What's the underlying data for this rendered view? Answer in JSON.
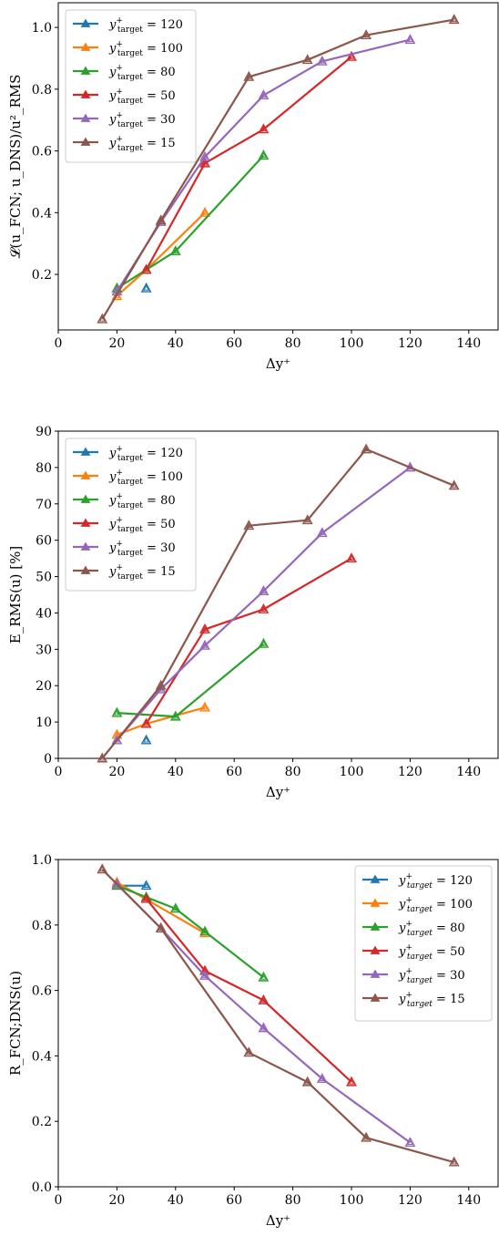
{
  "colors": {
    "120": "#1f77b4",
    "100": "#ff7f0e",
    "80": "#2ca02c",
    "50": "#d62728",
    "30": "#9467bd",
    "15": "#8c564b"
  },
  "chart_data": [
    {
      "type": "line",
      "xlabel": "Δy⁺",
      "ylabel": "𝓛(u_FCN; u_DNS)/u²_RMS",
      "xlim": [
        0,
        150
      ],
      "ylim": [
        0.02,
        1.08
      ],
      "xticks": [
        0,
        20,
        40,
        60,
        80,
        100,
        120,
        140
      ],
      "yticks": [
        0.2,
        0.4,
        0.6,
        0.8,
        1.0
      ],
      "yticklabels": [
        "0.2",
        "0.4",
        "0.6",
        "0.8",
        "1.0"
      ],
      "legend_loc": "upper-left",
      "grid": false,
      "series": [
        {
          "name": "y⁺target = 120",
          "key": "120",
          "x": [
            30
          ],
          "y": [
            0.155
          ]
        },
        {
          "name": "y⁺target = 100",
          "key": "100",
          "x": [
            20,
            30,
            50
          ],
          "y": [
            0.13,
            0.215,
            0.4
          ]
        },
        {
          "name": "y⁺target = 80",
          "key": "80",
          "x": [
            20,
            30,
            40,
            70
          ],
          "y": [
            0.155,
            0.215,
            0.275,
            0.585
          ]
        },
        {
          "name": "y⁺target = 50",
          "key": "50",
          "x": [
            30,
            50,
            70,
            100
          ],
          "y": [
            0.215,
            0.56,
            0.67,
            0.905
          ]
        },
        {
          "name": "y⁺target = 30",
          "key": "30",
          "x": [
            20,
            35,
            50,
            70,
            90,
            120
          ],
          "y": [
            0.145,
            0.37,
            0.58,
            0.78,
            0.89,
            0.96
          ]
        },
        {
          "name": "y⁺target = 15",
          "key": "15",
          "x": [
            15,
            35,
            65,
            85,
            105,
            135
          ],
          "y": [
            0.055,
            0.375,
            0.84,
            0.895,
            0.975,
            1.025
          ]
        }
      ]
    },
    {
      "type": "line",
      "xlabel": "Δy⁺",
      "ylabel": "E_RMS(u) [%]",
      "xlim": [
        0,
        150
      ],
      "ylim": [
        0,
        90
      ],
      "xticks": [
        0,
        20,
        40,
        60,
        80,
        100,
        120,
        140
      ],
      "yticks": [
        0,
        10,
        20,
        30,
        40,
        50,
        60,
        70,
        80,
        90
      ],
      "yticklabels": [
        "0",
        "10",
        "20",
        "30",
        "40",
        "50",
        "60",
        "70",
        "80",
        "90"
      ],
      "legend_loc": "upper-left",
      "grid": false,
      "series": [
        {
          "name": "y⁺target = 120",
          "key": "120",
          "x": [
            30
          ],
          "y": [
            5
          ]
        },
        {
          "name": "y⁺target = 100",
          "key": "100",
          "x": [
            20,
            30,
            50
          ],
          "y": [
            6.5,
            9.5,
            14
          ]
        },
        {
          "name": "y⁺target = 80",
          "key": "80",
          "x": [
            20,
            40,
            70
          ],
          "y": [
            12.5,
            11.5,
            31.5
          ]
        },
        {
          "name": "y⁺target = 50",
          "key": "50",
          "x": [
            30,
            50,
            70,
            100
          ],
          "y": [
            9.5,
            35.5,
            41,
            55
          ]
        },
        {
          "name": "y⁺target = 30",
          "key": "30",
          "x": [
            20,
            35,
            50,
            70,
            90,
            120
          ],
          "y": [
            5,
            19,
            31,
            46,
            62,
            80
          ]
        },
        {
          "name": "y⁺target = 15",
          "key": "15",
          "x": [
            15,
            35,
            65,
            85,
            105,
            135
          ],
          "y": [
            0,
            20,
            64,
            65.5,
            85,
            75
          ]
        }
      ]
    },
    {
      "type": "line",
      "xlabel": "Δy⁺",
      "ylabel": "R_FCN;DNS(u)",
      "xlim": [
        0,
        150
      ],
      "ylim": [
        0,
        1.0
      ],
      "xticks": [
        0,
        20,
        40,
        60,
        80,
        100,
        120,
        140
      ],
      "yticks": [
        0,
        0.2,
        0.4,
        0.6,
        0.8,
        1.0
      ],
      "yticklabels": [
        "0.0",
        "0.2",
        "0.4",
        "0.6",
        "0.8",
        "1.0"
      ],
      "legend_loc": "upper-right",
      "grid": false,
      "series": [
        {
          "name": "y⁺target = 120",
          "key": "120",
          "x": [
            20,
            30
          ],
          "y": [
            0.92,
            0.92
          ]
        },
        {
          "name": "y⁺target = 100",
          "key": "100",
          "x": [
            20,
            50
          ],
          "y": [
            0.93,
            0.775
          ]
        },
        {
          "name": "y⁺target = 80",
          "key": "80",
          "x": [
            20,
            30,
            40,
            50,
            70
          ],
          "y": [
            0.92,
            0.885,
            0.85,
            0.78,
            0.64
          ]
        },
        {
          "name": "y⁺target = 50",
          "key": "50",
          "x": [
            30,
            50,
            70,
            100
          ],
          "y": [
            0.88,
            0.66,
            0.57,
            0.32
          ]
        },
        {
          "name": "y⁺target = 30",
          "key": "30",
          "x": [
            20,
            35,
            50,
            70,
            90,
            120
          ],
          "y": [
            0.925,
            0.79,
            0.645,
            0.485,
            0.33,
            0.135
          ]
        },
        {
          "name": "y⁺target = 15",
          "key": "15",
          "x": [
            15,
            35,
            65,
            85,
            105,
            135
          ],
          "y": [
            0.97,
            0.79,
            0.41,
            0.32,
            0.15,
            0.075
          ]
        }
      ]
    }
  ]
}
